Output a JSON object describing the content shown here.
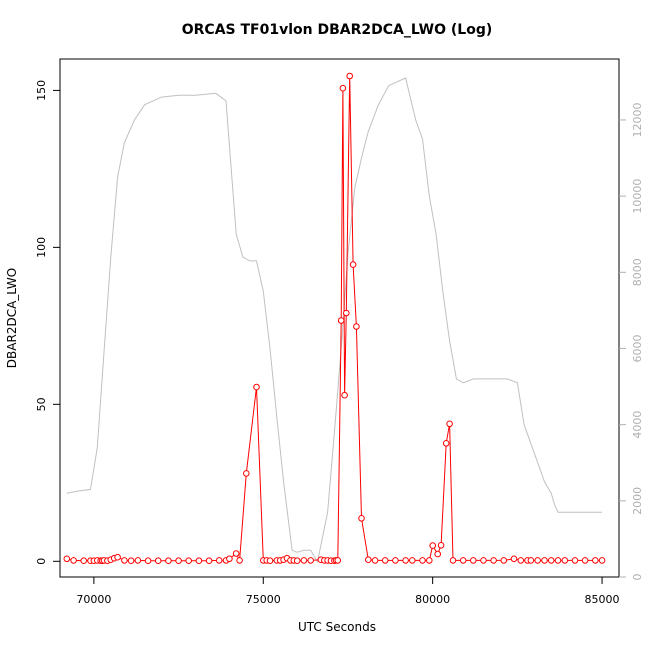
{
  "chart_data": {
    "type": "line",
    "title": "ORCAS TF01vlon DBAR2DCA_LWO (Log)",
    "xlabel": "UTC Seconds",
    "ylabel": "DBAR2DCA_LWO",
    "xlim": [
      69000,
      85500
    ],
    "ylim": [
      -5,
      160
    ],
    "y2lim": [
      0,
      13600
    ],
    "x_ticks": [
      70000,
      75000,
      80000,
      85000
    ],
    "y_ticks": [
      0,
      50,
      100,
      150
    ],
    "y2_ticks": [
      0,
      2000,
      4000,
      6000,
      8000,
      10000,
      12000
    ],
    "grid": false,
    "colors": {
      "primary": "#ff0000",
      "secondary": "#c0c0c0"
    },
    "series": [
      {
        "axis": "left",
        "style": "line+points",
        "x": [
          69200,
          69400,
          69700,
          69900,
          70000,
          70100,
          70200,
          70250,
          70300,
          70400,
          70500,
          70600,
          70700,
          70900,
          71100,
          71300,
          71600,
          71900,
          72200,
          72500,
          72800,
          73100,
          73400,
          73700,
          73900,
          74000,
          74200,
          74300,
          74500,
          74800,
          75000,
          75100,
          75200,
          75400,
          75500,
          75600,
          75700,
          75800,
          75900,
          76000,
          76200,
          76400,
          76700,
          76800,
          76900,
          77000,
          77100,
          77150,
          77200,
          77300,
          77350,
          77400,
          77450,
          77550,
          77650,
          77750,
          77900,
          78100,
          78300,
          78600,
          78900,
          79200,
          79400,
          79700,
          79900,
          80000,
          80150,
          80250,
          80400,
          80500,
          80600,
          80900,
          81200,
          81500,
          81800,
          82100,
          82400,
          82600,
          82800,
          82900,
          83100,
          83300,
          83500,
          83700,
          83900,
          84200,
          84500,
          84800,
          85000
        ],
        "y": [
          0.8,
          0.3,
          0.2,
          0.2,
          0.2,
          0.3,
          0.2,
          0.2,
          0.3,
          0.2,
          0.5,
          1.0,
          1.3,
          0.3,
          0.2,
          0.3,
          0.2,
          0.2,
          0.2,
          0.2,
          0.2,
          0.2,
          0.2,
          0.3,
          0.3,
          0.8,
          2.5,
          0.3,
          28.0,
          55.5,
          0.3,
          0.3,
          0.2,
          0.3,
          0.3,
          0.5,
          1.0,
          0.3,
          0.3,
          0.2,
          0.3,
          0.3,
          0.5,
          0.3,
          0.3,
          0.2,
          0.2,
          0.3,
          0.3,
          76.7,
          150.7,
          52.9,
          79.1,
          154.6,
          94.5,
          74.8,
          13.7,
          0.5,
          0.3,
          0.3,
          0.3,
          0.3,
          0.3,
          0.3,
          0.3,
          5.0,
          2.3,
          5.1,
          37.6,
          43.8,
          0.3,
          0.3,
          0.3,
          0.3,
          0.3,
          0.3,
          0.8,
          0.3,
          0.3,
          0.3,
          0.3,
          0.3,
          0.3,
          0.3,
          0.3,
          0.3,
          0.3,
          0.3,
          0.3
        ]
      },
      {
        "axis": "right",
        "style": "line",
        "x": [
          69200,
          69500,
          69900,
          70100,
          70300,
          70500,
          70700,
          70900,
          71200,
          71500,
          72000,
          72500,
          73000,
          73600,
          73900,
          74200,
          74400,
          74600,
          74800,
          75000,
          75200,
          75400,
          75600,
          75850,
          76000,
          76200,
          76400,
          76600,
          76900,
          77100,
          77300,
          77500,
          77700,
          77900,
          78100,
          78400,
          78700,
          79200,
          79500,
          79700,
          79900,
          80100,
          80300,
          80500,
          80700,
          80900,
          81200,
          81700,
          82200,
          82500,
          82700,
          82900,
          83100,
          83300,
          83500,
          83600,
          83700,
          84000,
          84500,
          85000
        ],
        "y": [
          2200,
          2250,
          2300,
          3400,
          5900,
          8400,
          10500,
          11400,
          12000,
          12400,
          12600,
          12650,
          12650,
          12700,
          12500,
          9000,
          8400,
          8300,
          8300,
          7500,
          6000,
          4200,
          2500,
          700,
          650,
          700,
          700,
          400,
          1700,
          3800,
          6000,
          8500,
          10200,
          11000,
          11700,
          12400,
          12900,
          13100,
          12000,
          11500,
          10000,
          9000,
          7500,
          6200,
          5200,
          5100,
          5200,
          5200,
          5200,
          5100,
          4000,
          3500,
          3000,
          2500,
          2200,
          1900,
          1700,
          1700,
          1700,
          1700
        ]
      }
    ]
  }
}
